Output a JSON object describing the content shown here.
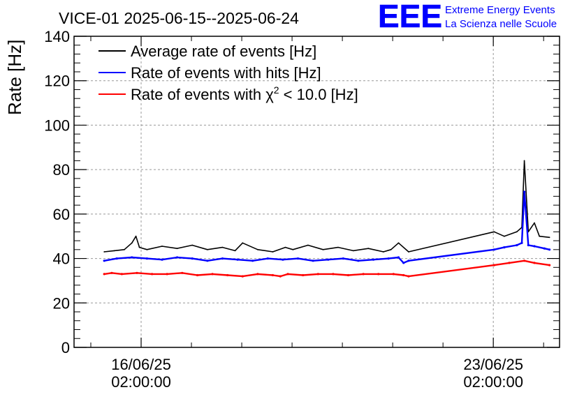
{
  "chart_data": {
    "type": "line",
    "title": "VICE-01 2025-06-15--2025-06-24",
    "ylabel": "Rate [Hz]",
    "xlabel": "",
    "ylim": [
      0,
      140
    ],
    "y_ticks": [
      0,
      20,
      40,
      60,
      80,
      100,
      120,
      140
    ],
    "x_unit": "days since 2025-06-15 00:00",
    "xlim": [
      -0.25,
      9.4
    ],
    "x_ticks": [
      {
        "x": 1.0833,
        "line1": "16/06/25",
        "line2": "02:00:00"
      },
      {
        "x": 8.0833,
        "line1": "23/06/25",
        "line2": "02:00:00"
      }
    ],
    "grid": true,
    "legend": "top-left",
    "series": [
      {
        "name": "Average rate of events [Hz]",
        "legend_prefix": "Average rate of events [Hz]",
        "legend_super": "",
        "legend_suffix": "",
        "color": "#000000",
        "x": [
          0.35,
          0.55,
          0.75,
          0.9,
          0.98,
          1.05,
          1.2,
          1.5,
          1.8,
          2.1,
          2.4,
          2.7,
          2.95,
          3.1,
          3.4,
          3.7,
          3.95,
          4.1,
          4.4,
          4.7,
          5.0,
          5.3,
          5.6,
          5.9,
          6.05,
          6.2,
          6.4,
          8.1,
          8.3,
          8.55,
          8.65,
          8.7,
          8.78,
          8.9,
          9.0,
          9.2
        ],
        "y": [
          43,
          43.5,
          44,
          47,
          50,
          45,
          44,
          45.5,
          44.5,
          46,
          44,
          45,
          43.5,
          47,
          44,
          43,
          45,
          44,
          46,
          44,
          45,
          43.5,
          44.5,
          43,
          44,
          47,
          43,
          52,
          50,
          52,
          54,
          84,
          52,
          56,
          50,
          49.5
        ]
      },
      {
        "name": "Rate of events with hits [Hz]",
        "legend_prefix": "Rate of events with hits [Hz]",
        "legend_super": "",
        "legend_suffix": "",
        "color": "#0000ff",
        "x": [
          0.35,
          0.6,
          0.9,
          1.2,
          1.5,
          1.8,
          2.1,
          2.4,
          2.7,
          3.0,
          3.3,
          3.6,
          3.9,
          4.2,
          4.5,
          4.8,
          5.1,
          5.4,
          5.7,
          6.0,
          6.2,
          6.3,
          6.4,
          8.1,
          8.3,
          8.55,
          8.65,
          8.7,
          8.78,
          8.9,
          9.1,
          9.2
        ],
        "y": [
          39,
          40,
          40.5,
          40,
          39.5,
          40.5,
          40,
          39,
          40,
          39.5,
          39,
          40,
          39.5,
          40,
          39,
          39.5,
          40,
          39,
          39.5,
          40,
          40.5,
          38,
          39,
          44,
          45,
          46,
          47,
          70,
          46,
          45.5,
          44.5,
          44
        ]
      },
      {
        "name": "Rate of events with chi2 < 10.0 [Hz]",
        "legend_prefix": "Rate of events with χ",
        "legend_super": "2",
        "legend_suffix": " < 10.0 [Hz]",
        "color": "#ff0000",
        "x": [
          0.35,
          0.5,
          0.7,
          1.0,
          1.3,
          1.6,
          1.9,
          2.2,
          2.5,
          2.8,
          3.1,
          3.4,
          3.7,
          3.85,
          4.0,
          4.3,
          4.6,
          4.9,
          5.2,
          5.5,
          5.8,
          6.1,
          6.3,
          6.4,
          8.1,
          8.4,
          8.7,
          8.9,
          9.2
        ],
        "y": [
          33,
          33.5,
          33,
          33.5,
          33,
          33,
          33.5,
          32.5,
          33,
          32.5,
          32,
          33,
          32.5,
          32,
          33,
          32.5,
          33,
          33,
          32.5,
          33,
          33,
          33,
          32.5,
          32,
          37,
          38,
          39,
          38,
          37
        ]
      }
    ]
  },
  "logo": {
    "mark": "EEE",
    "line1": "Extreme Energy Events",
    "line2": "La Scienza nelle Scuole",
    "color": "#0000ff"
  }
}
